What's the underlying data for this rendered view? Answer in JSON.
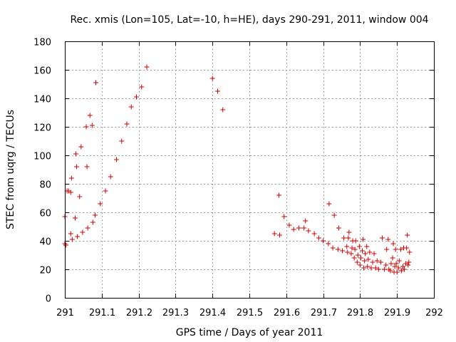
{
  "chart_data": {
    "type": "scatter",
    "title": "Rec. xmis (Lon=105, Lat=-10, h=HE), days 290-291, 2011, window 004",
    "xlabel": "GPS time / Days of year 2011",
    "ylabel": "STEC from uqrg / TECUs",
    "xlim": [
      291,
      292
    ],
    "ylim": [
      0,
      180
    ],
    "xticks": [
      "291",
      "291.1",
      "291.2",
      "291.3",
      "291.4",
      "291.5",
      "291.6",
      "291.7",
      "291.8",
      "291.9",
      "292"
    ],
    "yticks": [
      "0",
      "20",
      "40",
      "60",
      "80",
      "100",
      "120",
      "140",
      "160",
      "180"
    ],
    "grid": true,
    "marker": "+",
    "color": "#d00000",
    "series": [
      {
        "name": "STEC",
        "points": [
          [
            291.0,
            57
          ],
          [
            291.0,
            38
          ],
          [
            291.003,
            37
          ],
          [
            291.006,
            75
          ],
          [
            291.01,
            75
          ],
          [
            291.016,
            74
          ],
          [
            291.016,
            45
          ],
          [
            291.018,
            84
          ],
          [
            291.02,
            41
          ],
          [
            291.028,
            56
          ],
          [
            291.03,
            101
          ],
          [
            291.032,
            92
          ],
          [
            291.034,
            43
          ],
          [
            291.04,
            71
          ],
          [
            291.044,
            106
          ],
          [
            291.048,
            46
          ],
          [
            291.058,
            120
          ],
          [
            291.06,
            92
          ],
          [
            291.062,
            49
          ],
          [
            291.068,
            128
          ],
          [
            291.074,
            121
          ],
          [
            291.076,
            53
          ],
          [
            291.082,
            58
          ],
          [
            291.084,
            151
          ],
          [
            291.096,
            66
          ],
          [
            291.11,
            75
          ],
          [
            291.124,
            85
          ],
          [
            291.14,
            97
          ],
          [
            291.154,
            110
          ],
          [
            291.168,
            122
          ],
          [
            291.18,
            134
          ],
          [
            291.194,
            141
          ],
          [
            291.208,
            148
          ],
          [
            291.222,
            162
          ],
          [
            291.4,
            154
          ],
          [
            291.414,
            145
          ],
          [
            291.428,
            132
          ],
          [
            291.568,
            45
          ],
          [
            291.58,
            72
          ],
          [
            291.582,
            44
          ],
          [
            291.594,
            57
          ],
          [
            291.608,
            51
          ],
          [
            291.62,
            48
          ],
          [
            291.634,
            49
          ],
          [
            291.648,
            49
          ],
          [
            291.652,
            54
          ],
          [
            291.66,
            47
          ],
          [
            291.676,
            45
          ],
          [
            291.688,
            42
          ],
          [
            291.7,
            40
          ],
          [
            291.714,
            38
          ],
          [
            291.716,
            66
          ],
          [
            291.726,
            35
          ],
          [
            291.73,
            58
          ],
          [
            291.74,
            34
          ],
          [
            291.742,
            49
          ],
          [
            291.752,
            33
          ],
          [
            291.756,
            42
          ],
          [
            291.764,
            36
          ],
          [
            291.766,
            32
          ],
          [
            291.768,
            42
          ],
          [
            291.77,
            46
          ],
          [
            291.776,
            31
          ],
          [
            291.778,
            35
          ],
          [
            291.78,
            40
          ],
          [
            291.784,
            28
          ],
          [
            291.786,
            34
          ],
          [
            291.788,
            40
          ],
          [
            291.792,
            25
          ],
          [
            291.794,
            30
          ],
          [
            291.798,
            36
          ],
          [
            291.8,
            23
          ],
          [
            291.802,
            28
          ],
          [
            291.806,
            33
          ],
          [
            291.808,
            41
          ],
          [
            291.81,
            21
          ],
          [
            291.812,
            26
          ],
          [
            291.814,
            31
          ],
          [
            291.818,
            36
          ],
          [
            291.82,
            22
          ],
          [
            291.822,
            27
          ],
          [
            291.826,
            32
          ],
          [
            291.83,
            21
          ],
          [
            291.834,
            25
          ],
          [
            291.838,
            31
          ],
          [
            291.842,
            21
          ],
          [
            291.846,
            26
          ],
          [
            291.85,
            20
          ],
          [
            291.856,
            25
          ],
          [
            291.86,
            42
          ],
          [
            291.866,
            20
          ],
          [
            291.87,
            23
          ],
          [
            291.872,
            34
          ],
          [
            291.876,
            41
          ],
          [
            291.878,
            20
          ],
          [
            291.882,
            19
          ],
          [
            291.884,
            24
          ],
          [
            291.888,
            28
          ],
          [
            291.89,
            38
          ],
          [
            291.892,
            18
          ],
          [
            291.894,
            22
          ],
          [
            291.896,
            34
          ],
          [
            291.898,
            24
          ],
          [
            291.9,
            18
          ],
          [
            291.904,
            21
          ],
          [
            291.906,
            26
          ],
          [
            291.91,
            34
          ],
          [
            291.912,
            19
          ],
          [
            291.916,
            22
          ],
          [
            291.918,
            35
          ],
          [
            291.92,
            20
          ],
          [
            291.924,
            24
          ],
          [
            291.926,
            35
          ],
          [
            291.928,
            44
          ],
          [
            291.93,
            23
          ],
          [
            291.932,
            25
          ],
          [
            291.934,
            32
          ]
        ]
      }
    ]
  }
}
